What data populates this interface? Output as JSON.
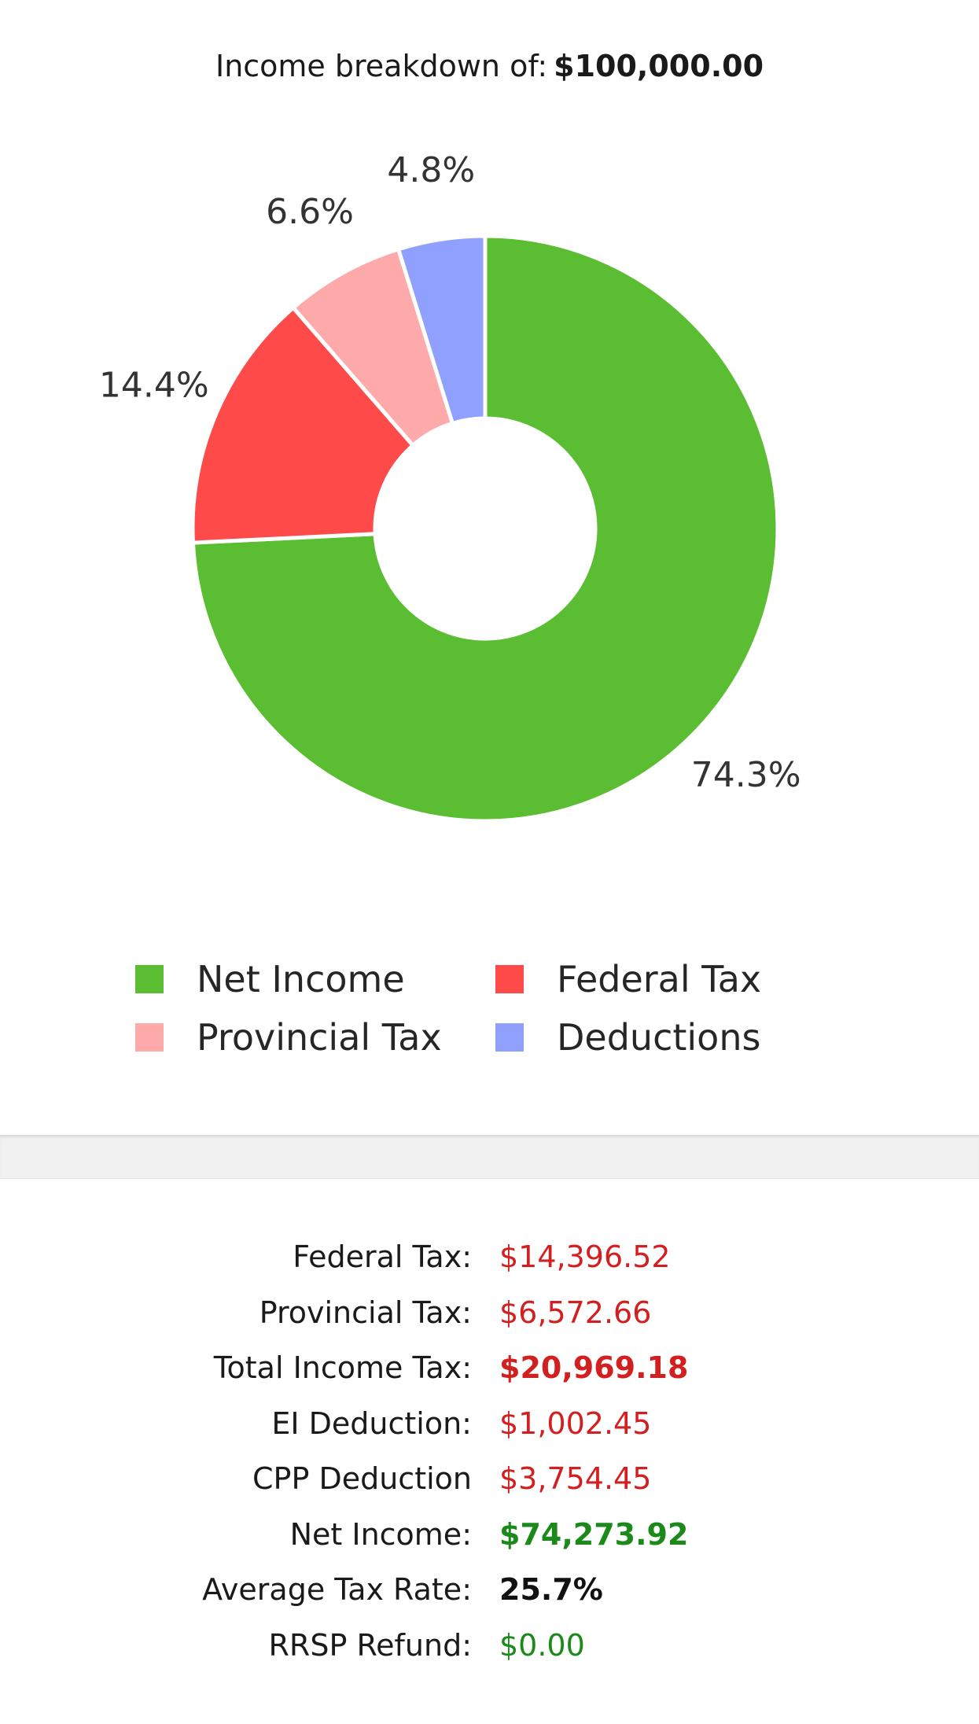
{
  "title": {
    "prefix": "Income breakdown of:",
    "amount": "$100,000.00"
  },
  "chart_data": {
    "type": "pie",
    "variant": "donut",
    "title": "Income breakdown of: $100,000.00",
    "categories": [
      "Net Income",
      "Federal Tax",
      "Provincial Tax",
      "Deductions"
    ],
    "values": [
      74.3,
      14.4,
      6.6,
      4.8
    ],
    "labels": [
      "74.3%",
      "14.4%",
      "6.6%",
      "4.8%"
    ],
    "colors": [
      "#5bbd31",
      "#ff4a4a",
      "#ffaaaa",
      "#90a0ff"
    ],
    "legend_position": "bottom"
  },
  "legend": [
    {
      "label": "Net Income",
      "color": "#5bbd31"
    },
    {
      "label": "Federal Tax",
      "color": "#ff4a4a"
    },
    {
      "label": "Provincial Tax",
      "color": "#ffaaaa"
    },
    {
      "label": "Deductions",
      "color": "#90a0ff"
    }
  ],
  "summary": [
    {
      "label": "Federal Tax:",
      "value": "$14,396.52",
      "style": "red"
    },
    {
      "label": "Provincial Tax:",
      "value": "$6,572.66",
      "style": "red"
    },
    {
      "label": "Total Income Tax:",
      "value": "$20,969.18",
      "style": "red-bold"
    },
    {
      "label": "EI Deduction:",
      "value": "$1,002.45",
      "style": "red"
    },
    {
      "label": "CPP Deduction",
      "value": "$3,754.45",
      "style": "red"
    },
    {
      "label": "Net Income:",
      "value": "$74,273.92",
      "style": "green-bold"
    },
    {
      "label": "Average Tax Rate:",
      "value": "25.7%",
      "style": "dark-bold"
    },
    {
      "label": "RRSP Refund:",
      "value": "$0.00",
      "style": "green"
    }
  ]
}
